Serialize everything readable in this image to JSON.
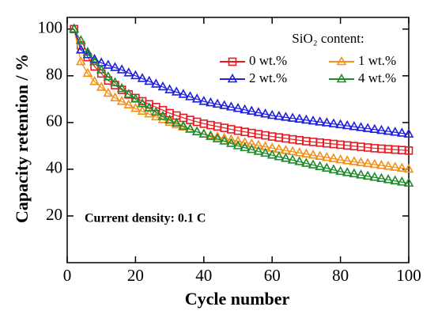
{
  "chart_data": {
    "type": "line",
    "x_label": "Cycle number",
    "y_label": "Capacity retention / %",
    "legend_title": "SiO₂ content:",
    "annotation": "Current density: 0.1 C",
    "xlim": [
      0,
      100
    ],
    "ylim": [
      0,
      105
    ],
    "xticks": [
      0,
      20,
      40,
      60,
      80,
      100
    ],
    "yticks": [
      20,
      40,
      60,
      80,
      100
    ],
    "x": [
      2,
      4,
      6,
      8,
      10,
      12,
      14,
      16,
      18,
      20,
      22,
      24,
      26,
      28,
      30,
      32,
      34,
      36,
      38,
      40,
      42,
      44,
      46,
      48,
      50,
      52,
      54,
      56,
      58,
      60,
      62,
      64,
      66,
      68,
      70,
      72,
      74,
      76,
      78,
      80,
      82,
      84,
      86,
      88,
      90,
      92,
      94,
      96,
      98,
      100
    ],
    "series": [
      {
        "name": "0 wt.%",
        "color": "#e8191f",
        "marker": "square",
        "values": [
          100,
          93,
          88,
          84,
          81,
          78,
          76,
          74,
          72,
          70.5,
          69.1,
          67.8,
          66.6,
          65.3,
          64,
          63,
          62,
          61.1,
          60.3,
          59.5,
          58.9,
          58.3,
          57.7,
          57.1,
          56.5,
          56,
          55.5,
          55,
          54.5,
          54,
          53.6,
          53.2,
          52.8,
          52.4,
          52,
          51.7,
          51.4,
          51.1,
          50.8,
          50.5,
          50.2,
          49.9,
          49.6,
          49.3,
          49,
          48.8,
          48.6,
          48.4,
          48.2,
          48
        ]
      },
      {
        "name": "1 wt.%",
        "color": "#f39019",
        "marker": "triangle",
        "values": [
          100,
          86,
          81,
          77.5,
          75,
          72.5,
          70.5,
          69,
          67.5,
          66,
          64.8,
          63.6,
          62.4,
          61.2,
          60,
          59,
          58,
          57,
          56,
          55,
          54.4,
          53.8,
          53.2,
          52.6,
          52,
          51.4,
          50.8,
          50.2,
          49.6,
          49,
          48.5,
          48,
          47.5,
          47,
          46.5,
          46,
          45.5,
          45,
          44.5,
          44,
          43.6,
          43.2,
          42.8,
          42.4,
          42,
          41.6,
          41.2,
          40.8,
          40.4,
          40
        ]
      },
      {
        "name": "2 wt.%",
        "color": "#1f1fe0",
        "marker": "triangle",
        "values": [
          100,
          91,
          89,
          87,
          85.5,
          84.5,
          83.5,
          82.5,
          81.2,
          80,
          78.8,
          77.6,
          76.4,
          75.2,
          74,
          73,
          72,
          71,
          70,
          69,
          68.4,
          67.8,
          67.2,
          66.6,
          66,
          65.4,
          64.8,
          64.2,
          63.6,
          63,
          62.6,
          62.2,
          61.8,
          61.4,
          61,
          60.6,
          60.2,
          59.8,
          59.4,
          59,
          58.6,
          58.2,
          57.8,
          57.4,
          57,
          56.6,
          56.2,
          55.8,
          55.4,
          55
        ]
      },
      {
        "name": "4 wt.%",
        "color": "#1f8a2e",
        "marker": "triangle",
        "values": [
          100,
          95,
          90,
          86,
          82.5,
          79.5,
          77,
          74.5,
          72,
          70,
          68,
          66.2,
          64.4,
          62.6,
          61,
          59.7,
          58.4,
          57.2,
          56,
          55,
          54,
          53,
          52,
          51,
          50,
          49.2,
          48.4,
          47.6,
          46.8,
          46,
          45.3,
          44.6,
          43.9,
          43.2,
          42.5,
          41.8,
          41.1,
          40.4,
          39.7,
          39,
          38.5,
          38,
          37.5,
          37,
          36.5,
          36,
          35.5,
          35,
          34.5,
          34
        ]
      }
    ]
  }
}
